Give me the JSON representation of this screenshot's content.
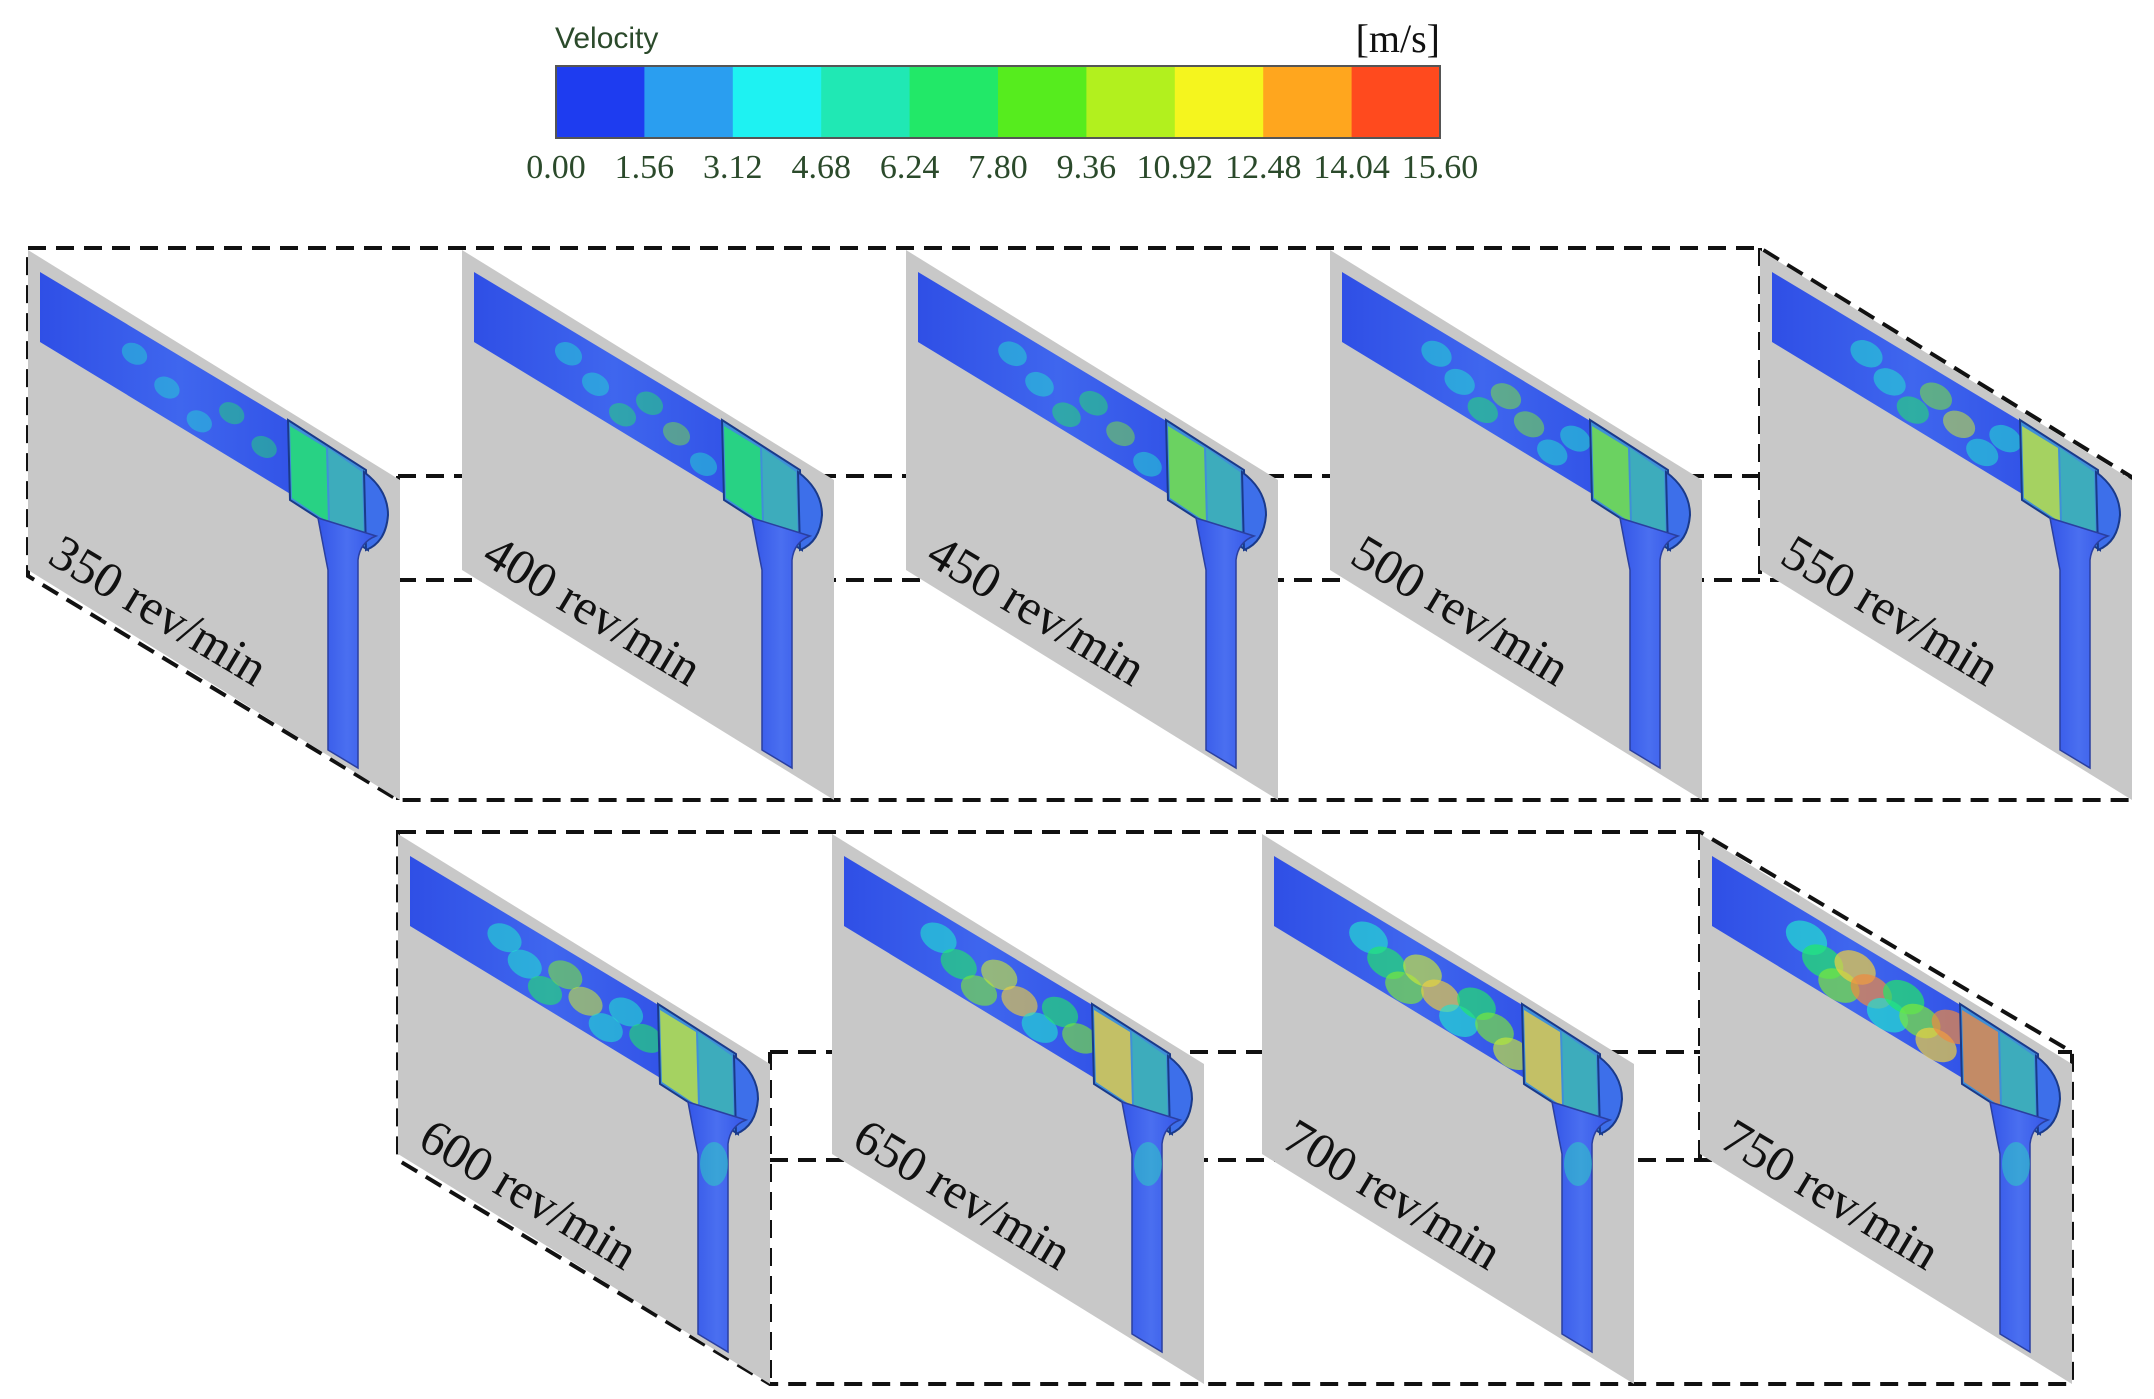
{
  "legend": {
    "title": "Velocity",
    "unit": "[m/s]",
    "ticks": [
      "0.00",
      "1.56",
      "3.12",
      "4.68",
      "6.24",
      "7.80",
      "9.36",
      "10.92",
      "12.48",
      "14.04",
      "15.60"
    ],
    "colors": [
      "#1e3cf0",
      "#2a9ef0",
      "#1ef2f2",
      "#20e8b4",
      "#22e868",
      "#56ec1e",
      "#b2f01e",
      "#f5f51e",
      "#ffa61e",
      "#ff4a1e"
    ]
  },
  "panels": [
    {
      "label": "350 rev/min",
      "intensity": 0.25
    },
    {
      "label": "400 rev/min",
      "intensity": 0.32
    },
    {
      "label": "450 rev/min",
      "intensity": 0.38
    },
    {
      "label": "500 rev/min",
      "intensity": 0.45
    },
    {
      "label": "550 rev/min",
      "intensity": 0.52
    },
    {
      "label": "600 rev/min",
      "intensity": 0.6
    },
    {
      "label": "650 rev/min",
      "intensity": 0.68
    },
    {
      "label": "700 rev/min",
      "intensity": 0.78
    },
    {
      "label": "750 rev/min",
      "intensity": 0.88
    }
  ]
}
